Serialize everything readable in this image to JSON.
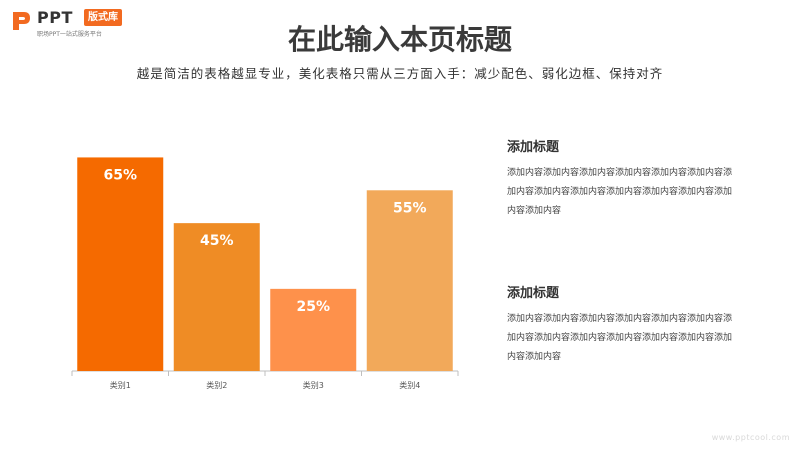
{
  "brand": {
    "name": "PPT",
    "tag": "版式库",
    "subtitle": "职场PPT一站式服务平台",
    "accent": "#f26a20"
  },
  "title": "在此输入本页标题",
  "subtitle": "越是简洁的表格越显专业，美化表格只需从三方面入手：减少配色、弱化边框、保持对齐",
  "chart_data": {
    "type": "bar",
    "categories": [
      "类别1",
      "类别2",
      "类别3",
      "类别4"
    ],
    "values": [
      65,
      45,
      25,
      55
    ],
    "data_labels": [
      "65%",
      "45%",
      "25%",
      "55%"
    ],
    "colors": [
      "#f56a00",
      "#ef8c25",
      "#fe914b",
      "#f2a95a"
    ],
    "ylim": [
      0,
      70
    ],
    "grid": false
  },
  "blocks": [
    {
      "title": "添加标题",
      "body": "添加内容添加内容添加内容添加内容添加内容添加内容添加内容添加内容添加内容添加内容添加内容添加内容添加内容添加内容"
    },
    {
      "title": "添加标题",
      "body": "添加内容添加内容添加内容添加内容添加内容添加内容添加内容添加内容添加内容添加内容添加内容添加内容添加内容添加内容"
    }
  ],
  "footer_url": "www.pptcool.com"
}
